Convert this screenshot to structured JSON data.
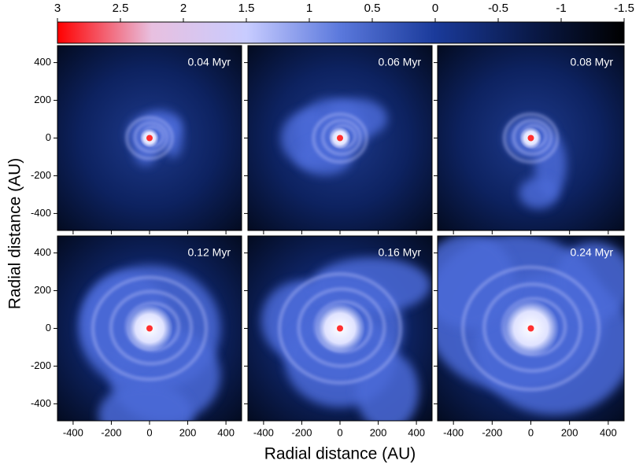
{
  "chart_data": {
    "type": "heatmap",
    "xlabel": "Radial distance (AU)",
    "ylabel": "Radial distance (AU)",
    "xlim": [
      -482,
      482
    ],
    "ylim": [
      -490,
      490
    ],
    "xticks": [
      -400,
      -200,
      0,
      200,
      400
    ],
    "yticks": [
      -400,
      -200,
      0,
      200,
      400
    ],
    "panels": [
      "0.04 Myr",
      "0.06 Myr",
      "0.08 Myr",
      "0.12 Myr",
      "0.16 Myr",
      "0.24 Myr"
    ],
    "colorbar": {
      "lim": [
        3,
        -1.5
      ],
      "ticks": [
        3,
        2.5,
        2,
        1.5,
        1,
        0.5,
        0,
        -0.5,
        -1,
        -1.5
      ],
      "colors": [
        "#ff0000",
        "#e8c0e0",
        "#c8ccff",
        "#5a78dc",
        "#1a3a9a",
        "#0a1a4a",
        "#000000"
      ]
    }
  }
}
